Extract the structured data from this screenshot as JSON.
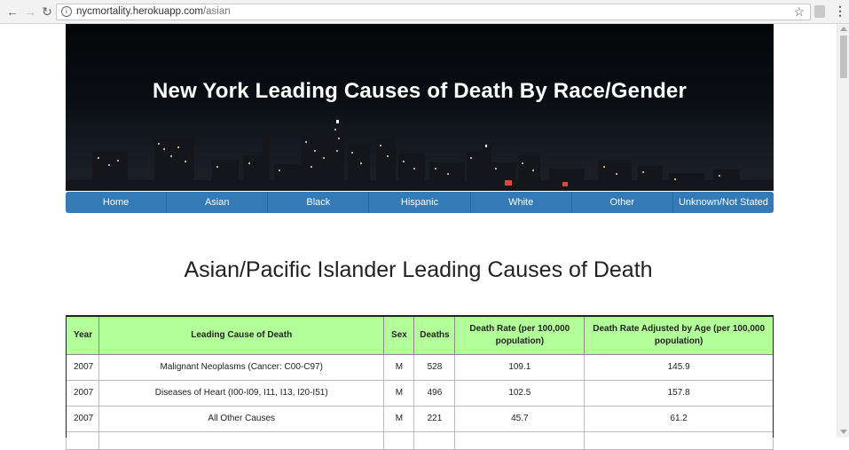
{
  "browser": {
    "url_host": "nycmortality.herokuapp.com",
    "url_path": "/asian"
  },
  "banner": {
    "title": "New York Leading Causes of Death By Race/Gender"
  },
  "nav": {
    "items": [
      "Home",
      "Asian",
      "Black",
      "Hispanic",
      "White",
      "Other",
      "Unknown/Not Stated"
    ]
  },
  "main": {
    "heading": "Asian/Pacific Islander Leading Causes of Death"
  },
  "table": {
    "headers": {
      "year": "Year",
      "cause": "Leading Cause of Death",
      "sex": "Sex",
      "deaths": "Deaths",
      "rate": "Death Rate (per 100,000 population)",
      "adjusted": "Death Rate Adjusted by Age (per 100,000 population)"
    },
    "rows": [
      {
        "year": "2007",
        "cause": "Malignant Neoplasms (Cancer: C00-C97)",
        "sex": "M",
        "deaths": "528",
        "rate": "109.1",
        "adjusted": "145.9"
      },
      {
        "year": "2007",
        "cause": "Diseases of Heart (I00-I09, I11, I13, I20-I51)",
        "sex": "M",
        "deaths": "496",
        "rate": "102.5",
        "adjusted": "157.8"
      },
      {
        "year": "2007",
        "cause": "All Other Causes",
        "sex": "M",
        "deaths": "221",
        "rate": "45.7",
        "adjusted": "61.2"
      }
    ]
  },
  "colors": {
    "nav_bg": "#337ab7",
    "table_header_bg": "#b3ff99"
  }
}
